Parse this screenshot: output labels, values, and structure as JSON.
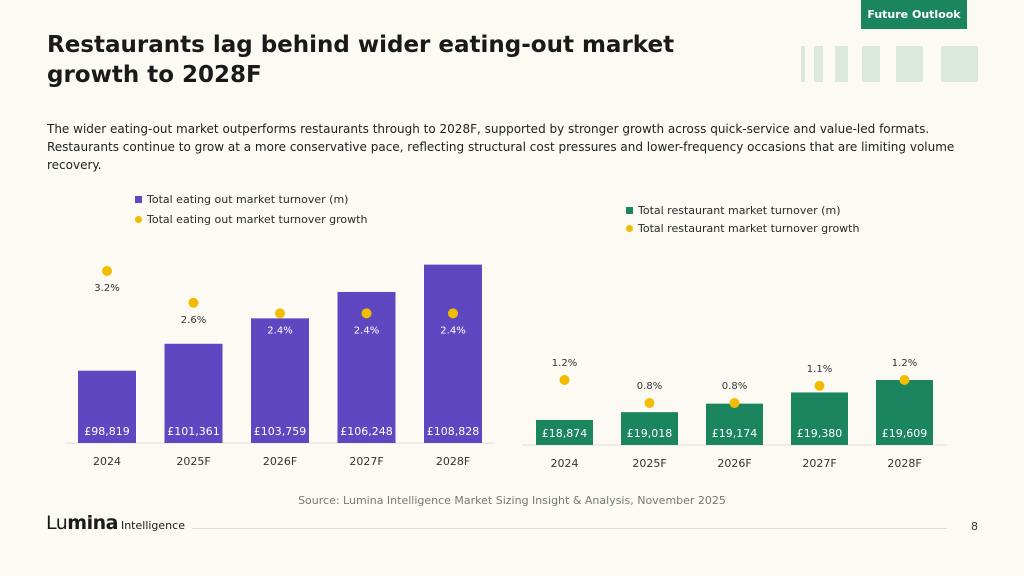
{
  "tag": "Future Outlook",
  "title": "Restaurants lag behind wider eating-out market growth to 2028F",
  "intro": "The wider eating-out market outperforms restaurants through to 2028F, supported by stronger growth across quick-service and value-led formats. Restaurants continue to grow at a more conservative pace, reflecting structural cost pressures and lower-frequency occasions that are limiting volume recovery.",
  "source": "Source: Lumina Intelligence Market Sizing Insight & Analysis, November 2025",
  "logo": {
    "brand_light": "Lu",
    "brand_bold": "mina",
    "sub": "Intelligence"
  },
  "page_number": "8",
  "colors": {
    "purple": "#5f47c2",
    "green": "#1b8560",
    "gold": "#f2bd00"
  },
  "chart_data": [
    {
      "type": "bar",
      "categories": [
        "2024",
        "2025F",
        "2026F",
        "2027F",
        "2028F"
      ],
      "series": [
        {
          "name": "Total eating out market turnover (m)",
          "values": [
            98819,
            101361,
            103759,
            106248,
            108828
          ],
          "labels": [
            "£98,819",
            "£101,361",
            "£103,759",
            "£106,248",
            "£108,828"
          ]
        },
        {
          "name": "Total eating out market turnover growth",
          "values": [
            3.2,
            2.6,
            2.4,
            2.4,
            2.4
          ],
          "labels": [
            "3.2%",
            "2.6%",
            "2.4%",
            "2.4%",
            "2.4%"
          ]
        }
      ]
    },
    {
      "type": "bar",
      "categories": [
        "2024",
        "2025F",
        "2026F",
        "2027F",
        "2028F"
      ],
      "series": [
        {
          "name": "Total restaurant market turnover (m)",
          "values": [
            18874,
            19018,
            19174,
            19380,
            19609
          ],
          "labels": [
            "£18,874",
            "£19,018",
            "£19,174",
            "£19,380",
            "£19,609"
          ]
        },
        {
          "name": "Total restaurant market turnover growth",
          "values": [
            1.2,
            0.8,
            0.8,
            1.1,
            1.2
          ],
          "labels": [
            "1.2%",
            "0.8%",
            "0.8%",
            "1.1%",
            "1.2%"
          ]
        }
      ]
    }
  ]
}
